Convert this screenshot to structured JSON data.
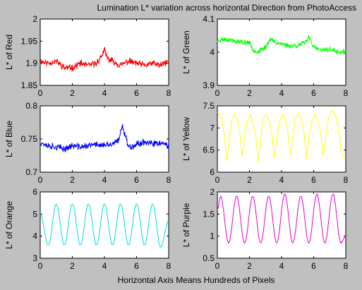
{
  "figure": {
    "title": "Lumination L* variation across horizontal Direction from PhotoAccess",
    "xlabel": "Horizontal Axis Means Hundreds of Pixels",
    "background": "#c0c0c0",
    "axes_background": "#ffffff"
  },
  "chart_data": [
    {
      "type": "line",
      "ylabel": "L* of Red",
      "color": "#ff0000",
      "xlim": [
        0,
        8
      ],
      "ylim": [
        1.85,
        2
      ],
      "xticks": [
        "0",
        "2",
        "4",
        "6",
        "8"
      ],
      "yticks": [
        "1.85",
        "1.9",
        "1.95",
        "2"
      ],
      "ytick_values": [
        1.85,
        1.9,
        1.95,
        2
      ],
      "x": [
        0,
        0.5,
        1,
        1.5,
        2,
        2.5,
        3,
        3.5,
        3.8,
        4,
        4.2,
        4.5,
        5,
        5.5,
        6,
        6.5,
        7,
        7.5,
        8
      ],
      "y": [
        1.905,
        1.9,
        1.905,
        1.89,
        1.89,
        1.9,
        1.895,
        1.9,
        1.915,
        1.93,
        1.91,
        1.905,
        1.895,
        1.905,
        1.9,
        1.895,
        1.9,
        1.895,
        1.905
      ],
      "noise": 0.006,
      "seed": 11
    },
    {
      "type": "line",
      "ylabel": "L* of Green",
      "color": "#00ff00",
      "xlim": [
        0,
        8
      ],
      "ylim": [
        3.9,
        4.1
      ],
      "xticks": [
        "0",
        "2",
        "4",
        "6",
        "8"
      ],
      "yticks": [
        "3.9",
        "4",
        "4.1"
      ],
      "ytick_values": [
        3.9,
        4,
        4.1
      ],
      "x": [
        0,
        0.5,
        1,
        1.5,
        2,
        2.2,
        2.5,
        3,
        3.3,
        3.6,
        4,
        4.5,
        5,
        5.5,
        5.7,
        6,
        6.5,
        7,
        7.5,
        8
      ],
      "y": [
        4.035,
        4.04,
        4.035,
        4.03,
        4.03,
        4.01,
        4.0,
        4.015,
        4.04,
        4.03,
        4.025,
        4.02,
        4.02,
        4.03,
        4.05,
        4.015,
        4.005,
        4.01,
        4.0,
        4.0
      ],
      "noise": 0.006,
      "seed": 23
    },
    {
      "type": "line",
      "ylabel": "L* of Blue",
      "color": "#0000ff",
      "xlim": [
        0,
        8
      ],
      "ylim": [
        0.7,
        0.8
      ],
      "xticks": [
        "0",
        "2",
        "4",
        "6",
        "8"
      ],
      "yticks": [
        "0.7",
        "0.75",
        "0.8"
      ],
      "ytick_values": [
        0.7,
        0.75,
        0.8
      ],
      "x": [
        0,
        0.5,
        1,
        1.5,
        2,
        2.5,
        3,
        3.5,
        4,
        4.5,
        4.9,
        5.1,
        5.3,
        5.5,
        6,
        6.5,
        7,
        7.5,
        8
      ],
      "y": [
        0.745,
        0.74,
        0.738,
        0.735,
        0.74,
        0.738,
        0.74,
        0.742,
        0.74,
        0.742,
        0.748,
        0.772,
        0.755,
        0.738,
        0.742,
        0.746,
        0.742,
        0.744,
        0.738
      ],
      "noise": 0.004,
      "seed": 37
    },
    {
      "type": "line",
      "ylabel": "L* of Yellow",
      "color": "#ffff00",
      "xlim": [
        0,
        8
      ],
      "ylim": [
        6,
        7.5
      ],
      "xticks": [
        "0",
        "2",
        "4",
        "6",
        "8"
      ],
      "yticks": [
        "6",
        "6.5",
        "7",
        "7.5"
      ],
      "ytick_values": [
        6,
        6.5,
        7,
        7.5
      ],
      "x": [
        0,
        0.15,
        0.3,
        0.45,
        0.6,
        0.75,
        0.9,
        1.05,
        1.25,
        1.4,
        1.55,
        1.7,
        1.85,
        2.05,
        2.2,
        2.4,
        2.55,
        2.7,
        2.85,
        3.05,
        3.25,
        3.4,
        3.55,
        3.7,
        3.85,
        4.05,
        4.25,
        4.4,
        4.55,
        4.7,
        4.85,
        5.05,
        5.25,
        5.4,
        5.55,
        5.7,
        5.9,
        6.1,
        6.3,
        6.45,
        6.6,
        6.75,
        6.95,
        7.2,
        7.4,
        7.55,
        7.7,
        7.85,
        8
      ],
      "y": [
        7.35,
        7.3,
        7.15,
        6.8,
        6.25,
        6.8,
        7.2,
        7.3,
        7.2,
        6.9,
        6.35,
        6.75,
        7.15,
        7.3,
        7.15,
        6.8,
        6.2,
        6.75,
        7.2,
        7.3,
        7.15,
        6.85,
        6.3,
        6.75,
        7.15,
        7.3,
        7.2,
        6.9,
        6.35,
        6.8,
        7.2,
        7.35,
        7.2,
        6.9,
        6.3,
        6.8,
        7.2,
        7.3,
        7.15,
        6.85,
        6.35,
        6.8,
        7.25,
        7.4,
        7.25,
        6.95,
        6.5,
        6.35,
        6.3
      ],
      "noise": 0.01,
      "seed": 41
    },
    {
      "type": "line",
      "ylabel": "L* of Orange",
      "color": "#00dddd",
      "xlim": [
        0,
        8
      ],
      "ylim": [
        3,
        6
      ],
      "xticks": [
        "0",
        "2",
        "4",
        "6",
        "8"
      ],
      "yticks": [
        "3",
        "4",
        "5",
        "6"
      ],
      "ytick_values": [
        3,
        4,
        5,
        6
      ],
      "x": [
        0,
        0.5,
        1,
        1.5,
        2,
        2.5,
        3,
        3.5,
        4,
        4.5,
        5,
        5.5,
        6,
        6.5,
        7,
        7.5,
        8
      ],
      "y": [
        5.0,
        3.6,
        5.45,
        3.6,
        5.45,
        3.6,
        5.45,
        3.6,
        5.45,
        3.6,
        5.45,
        3.6,
        5.45,
        3.6,
        5.45,
        3.5,
        4.7
      ],
      "smooth": true,
      "noise": 0,
      "seed": 5
    },
    {
      "type": "line",
      "ylabel": "L* of Purple",
      "color": "#dd00dd",
      "xlim": [
        0,
        8
      ],
      "ylim": [
        0.5,
        2
      ],
      "xticks": [
        "0",
        "2",
        "4",
        "6",
        "8"
      ],
      "yticks": [
        "0.5",
        "1",
        "1.5",
        "2"
      ],
      "ytick_values": [
        0.5,
        1,
        1.5,
        2
      ],
      "x": [
        0,
        0.2,
        0.7,
        1.2,
        1.7,
        2.2,
        2.7,
        3.2,
        3.7,
        4.2,
        4.7,
        5.2,
        5.7,
        6.2,
        6.7,
        7.2,
        7.7,
        8
      ],
      "y": [
        1.6,
        1.9,
        0.85,
        1.9,
        0.85,
        1.9,
        0.85,
        1.9,
        0.85,
        1.95,
        0.85,
        1.9,
        0.85,
        1.95,
        0.85,
        1.95,
        0.85,
        1.0
      ],
      "smooth": true,
      "noise": 0.01,
      "seed": 9
    }
  ]
}
